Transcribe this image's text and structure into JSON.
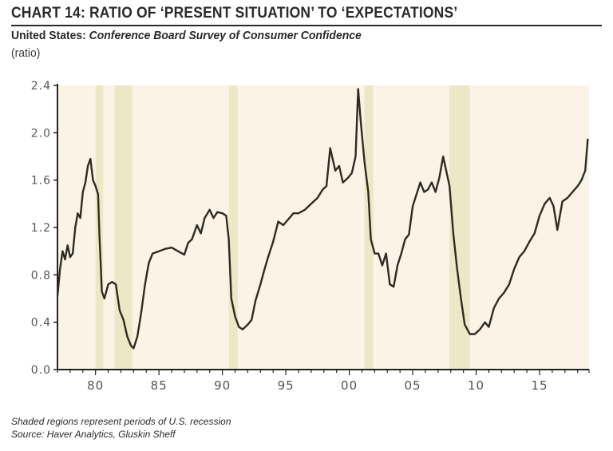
{
  "header": {
    "title": "CHART 14: RATIO OF ‘PRESENT SITUATION’ TO ‘EXPECTATIONS’",
    "subtitle_bold": "United States:",
    "subtitle_italic": "Conference Board Survey of Consumer Confidence",
    "unit": "(ratio)"
  },
  "footer": {
    "note": "Shaded regions represent periods of U.S. recession",
    "source": "Source: Haver Analytics, Gluskin Sheff"
  },
  "colors": {
    "plot_background": "#fbf3e6",
    "recession_band": "#ece7c4",
    "line": "#2e2c22",
    "axis": "#222222",
    "tick_label": "#555555"
  },
  "chart_data": {
    "type": "line",
    "title": "Ratio of 'Present Situation' to 'Expectations'",
    "xlabel": "",
    "ylabel": "(ratio)",
    "xlim": [
      1977.0,
      2018.9
    ],
    "ylim": [
      0.0,
      2.4
    ],
    "grid": false,
    "legend": "none",
    "y_ticks": [
      0.0,
      0.4,
      0.8,
      1.2,
      1.6,
      2.0,
      2.4
    ],
    "y_tick_labels": [
      "0.0",
      "0.4",
      "0.8",
      "1.2",
      "1.6",
      "2.0",
      "2.4"
    ],
    "x_ticks": [
      1980,
      1985,
      1990,
      1995,
      2000,
      2005,
      2010,
      2015
    ],
    "x_tick_labels": [
      "80",
      "85",
      "90",
      "95",
      "00",
      "05",
      "10",
      "15"
    ],
    "recessions": [
      [
        1980.0,
        1980.6
      ],
      [
        1981.5,
        1982.9
      ],
      [
        1990.5,
        1991.2
      ],
      [
        2001.2,
        2001.9
      ],
      [
        2007.9,
        2009.5
      ]
    ],
    "series": [
      {
        "name": "Present Situation / Expectations",
        "x": [
          1977.0,
          1977.2,
          1977.4,
          1977.6,
          1977.8,
          1978.0,
          1978.2,
          1978.4,
          1978.6,
          1978.8,
          1979.0,
          1979.2,
          1979.4,
          1979.6,
          1979.8,
          1980.0,
          1980.2,
          1980.3,
          1980.5,
          1980.7,
          1981.0,
          1981.3,
          1981.6,
          1981.9,
          1982.2,
          1982.5,
          1982.8,
          1983.0,
          1983.3,
          1983.6,
          1983.9,
          1984.2,
          1984.5,
          1985.0,
          1985.5,
          1986.0,
          1986.5,
          1987.0,
          1987.3,
          1987.6,
          1988.0,
          1988.3,
          1988.6,
          1989.0,
          1989.3,
          1989.6,
          1990.0,
          1990.3,
          1990.5,
          1990.7,
          1991.0,
          1991.3,
          1991.6,
          1992.0,
          1992.3,
          1992.6,
          1993.0,
          1993.3,
          1993.6,
          1994.0,
          1994.4,
          1994.8,
          1995.2,
          1995.6,
          1996.0,
          1996.5,
          1997.0,
          1997.5,
          1997.9,
          1998.2,
          1998.5,
          1998.9,
          1999.2,
          1999.5,
          1999.9,
          2000.2,
          2000.5,
          2000.7,
          2000.9,
          2001.2,
          2001.5,
          2001.7,
          2002.0,
          2002.3,
          2002.6,
          2002.9,
          2003.2,
          2003.5,
          2003.8,
          2004.1,
          2004.4,
          2004.7,
          2005.0,
          2005.3,
          2005.6,
          2005.9,
          2006.2,
          2006.5,
          2006.8,
          2007.1,
          2007.4,
          2007.7,
          2007.9,
          2008.2,
          2008.5,
          2008.8,
          2009.1,
          2009.5,
          2009.9,
          2010.3,
          2010.7,
          2011.0,
          2011.4,
          2011.8,
          2012.2,
          2012.6,
          2013.0,
          2013.4,
          2013.8,
          2014.2,
          2014.6,
          2015.0,
          2015.4,
          2015.8,
          2016.1,
          2016.4,
          2016.8,
          2017.2,
          2017.6,
          2018.0,
          2018.3,
          2018.6,
          2018.8
        ],
        "values": [
          0.62,
          0.85,
          1.0,
          0.93,
          1.05,
          0.95,
          0.98,
          1.2,
          1.32,
          1.28,
          1.5,
          1.58,
          1.72,
          1.78,
          1.6,
          1.55,
          1.48,
          1.15,
          0.66,
          0.6,
          0.72,
          0.74,
          0.72,
          0.5,
          0.42,
          0.28,
          0.2,
          0.18,
          0.28,
          0.48,
          0.72,
          0.9,
          0.98,
          1.0,
          1.02,
          1.03,
          1.0,
          0.97,
          1.07,
          1.1,
          1.22,
          1.15,
          1.28,
          1.35,
          1.28,
          1.33,
          1.32,
          1.3,
          1.1,
          0.6,
          0.45,
          0.36,
          0.34,
          0.38,
          0.42,
          0.58,
          0.72,
          0.84,
          0.95,
          1.08,
          1.25,
          1.22,
          1.27,
          1.32,
          1.32,
          1.35,
          1.4,
          1.45,
          1.52,
          1.55,
          1.87,
          1.68,
          1.72,
          1.58,
          1.62,
          1.66,
          1.8,
          2.37,
          2.1,
          1.75,
          1.5,
          1.1,
          0.98,
          0.98,
          0.88,
          0.98,
          0.72,
          0.7,
          0.88,
          0.98,
          1.1,
          1.14,
          1.38,
          1.48,
          1.58,
          1.5,
          1.52,
          1.58,
          1.5,
          1.62,
          1.8,
          1.65,
          1.55,
          1.15,
          0.85,
          0.6,
          0.38,
          0.3,
          0.3,
          0.34,
          0.4,
          0.36,
          0.52,
          0.6,
          0.65,
          0.72,
          0.85,
          0.95,
          1.0,
          1.08,
          1.15,
          1.3,
          1.4,
          1.45,
          1.38,
          1.18,
          1.42,
          1.45,
          1.5,
          1.55,
          1.6,
          1.68,
          1.95
        ]
      }
    ]
  }
}
